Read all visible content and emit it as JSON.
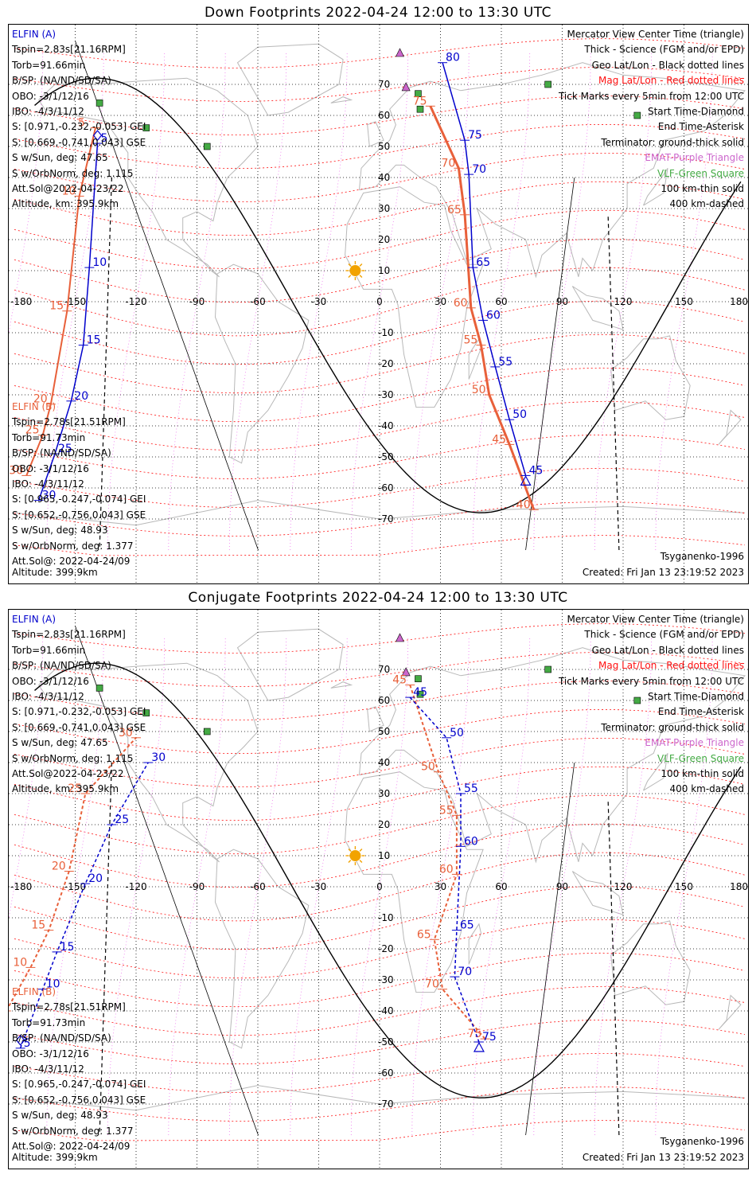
{
  "panels": [
    {
      "title": "Down Footprints 2022-04-24 12:00 to 13:30 UTC",
      "elfin_a": {
        "label": "ELFIN (A)",
        "lines": [
          "Tspin=2.83s[21.16RPM]",
          "Torb=91.66min",
          "B/SP: (NA/ND/SD/SA)",
          "OBO: -3/1/12/16",
          "IBO: -4/3/11/12",
          "S: [0.971,-0.232,-0.053] GEI",
          "S: [0.669,-0.741,0.043] GSE",
          "S w/Sun, deg: 47.65",
          "S w/OrbNorm, deg: 1.115",
          "Att.Sol@2022-04-23/22",
          "Altitude, km: 395.9km"
        ]
      },
      "elfin_b": {
        "label": "ELFIN (B)",
        "lines": [
          "Tspin=2.78s[21.51RPM]",
          "Torb=91.73min",
          "B/SP: (NA/ND/SD/SA)",
          "OBO: -3/1/12/16",
          "IBO: -4/3/11/12",
          "S: [0.965,-0.247,-0.074] GEI",
          "S: [0.652,-0.756,0.043] GSE",
          "S w/Sun, deg: 48.93",
          "S w/OrbNorm, deg: 1.377",
          "Att.Sol@: 2022-04-24/09",
          "Altitude: 399.9km"
        ]
      },
      "tracks": {
        "a_west": {
          "labels": [
            "5",
            "10",
            "15",
            "20",
            "25",
            "30"
          ],
          "lat": [
            51,
            11,
            -14,
            -32,
            -49,
            -64
          ],
          "lon": [
            -139,
            -143,
            -146,
            -152,
            -160,
            -168
          ]
        },
        "b_west": {
          "labels": [
            "5",
            "10",
            "15",
            "20",
            "25",
            "30"
          ],
          "lat": [
            56,
            34,
            -3,
            -33,
            -43,
            -56
          ],
          "lon": [
            -140,
            -148,
            -154,
            -162,
            -166,
            -174
          ]
        },
        "a_east": {
          "labels": [
            "80",
            "75",
            "70",
            "65",
            "60",
            "55",
            "50",
            "45"
          ],
          "lat": [
            77,
            52,
            41,
            11,
            -6,
            -21,
            -38,
            -56
          ],
          "lon": [
            31,
            42,
            44,
            46,
            51,
            57,
            64,
            72
          ]
        },
        "b_east": {
          "labels": [
            "75",
            "70",
            "65",
            "60",
            "55",
            "50",
            "45",
            "40"
          ],
          "lat": [
            63,
            43,
            28,
            -2,
            -14,
            -30,
            -46,
            -67
          ],
          "lon": [
            25,
            39,
            42,
            45,
            50,
            54,
            64,
            76
          ]
        }
      }
    },
    {
      "title": "Conjugate Footprints 2022-04-24 12:00 to 13:30 UTC",
      "elfin_a": {
        "label": "ELFIN (A)",
        "lines": [
          "Tspin=2.83s[21.16RPM]",
          "Torb=91.66min",
          "B/SP: (NA/ND/SD/SA)",
          "OBO: -3/1/12/16",
          "IBO: -4/3/11/12",
          "S: [0.971,-0.232,-0.053] GEI",
          "S: [0.669,-0.741,0.043] GSE",
          "S w/Sun, deg: 47.65",
          "S w/OrbNorm, deg: 1.115",
          "Att.Sol@2022-04-23/22",
          "Altitude, km: 395.9km"
        ]
      },
      "elfin_b": {
        "label": "ELFIN (B)",
        "lines": [
          "Tspin=2.78s[21.51RPM]",
          "Torb=91.73min",
          "B/SP: (NA/ND/SD/SA)",
          "OBO: -3/1/12/16",
          "IBO: -4/3/11/12",
          "S: [0.965,-0.247,-0.074] GEI",
          "S: [0.652,-0.756,0.043] GSE",
          "S w/Sun, deg: 48.93",
          "S w/OrbNorm, deg: 1.377",
          "Att.Sol@: 2022-04-24/09",
          "Altitude: 399.9km"
        ]
      },
      "tracks": {
        "a_west": {
          "labels": [
            "5",
            "10",
            "15",
            "20",
            "25",
            "30"
          ],
          "lat": [
            -52,
            -33,
            -21,
            1,
            20,
            40
          ],
          "lon": [
            -177,
            -166,
            -159,
            -145,
            -132,
            -114
          ]
        },
        "b_west": {
          "labels": [
            "5",
            "10",
            "15",
            "20",
            "25",
            "30"
          ],
          "lat": [
            -40,
            -26,
            -14,
            5,
            30,
            48
          ],
          "lon": [
            -184,
            -172,
            -163,
            -153,
            -145,
            -120
          ]
        },
        "a_east": {
          "labels": [
            "45",
            "50",
            "55",
            "60",
            "65",
            "70",
            "75"
          ],
          "lat": [
            61,
            48,
            30,
            13,
            -14,
            -29,
            -50
          ],
          "lon": [
            15,
            33,
            40,
            40,
            38,
            37,
            49
          ]
        },
        "b_east": {
          "labels": [
            "45",
            "50",
            "55",
            "60",
            "65",
            "70",
            "75"
          ],
          "lat": [
            65,
            37,
            23,
            4,
            -17,
            -33,
            -49
          ],
          "lon": [
            15,
            29,
            38,
            38,
            27,
            31,
            52
          ]
        }
      }
    }
  ],
  "legend": {
    "lines": [
      {
        "text": "Mercator View Center Time (triangle)",
        "color": "#000000"
      },
      {
        "text": "Thick - Science (FGM and/or EPD)",
        "color": "#000000"
      },
      {
        "text": "Geo Lat/Lon - Black dotted lines",
        "color": "#000000"
      },
      {
        "text": "Mag Lat/Lon - Red dotted lines",
        "color": "#ff1111"
      },
      {
        "text": "Tick Marks every 5min from 12:00 UTC",
        "color": "#000000"
      },
      {
        "text": "Start Time-Diamond",
        "color": "#000000"
      },
      {
        "text": "End Time-Asterisk",
        "color": "#000000"
      },
      {
        "text": "Terminator: ground-thick solid",
        "color": "#000000"
      },
      {
        "text": "EMAT-Purple Triangle",
        "color": "#cc66cc"
      },
      {
        "text": "VLF-Green Square",
        "color": "#44aa44"
      },
      {
        "text": "100 km-thin solid",
        "color": "#000000"
      },
      {
        "text": "400 km-dashed",
        "color": "#000000"
      }
    ]
  },
  "axes": {
    "lon_ticks": [
      "-180",
      "-150",
      "-120",
      "-90",
      "-60",
      "-30",
      "0",
      "30",
      "60",
      "90",
      "120",
      "150",
      "180"
    ],
    "lat_ticks": [
      "70",
      "60",
      "50",
      "40",
      "30",
      "20",
      "10",
      "0",
      "-10",
      "-20",
      "-30",
      "-40",
      "-50",
      "-60",
      "-70"
    ]
  },
  "model": "Tsyganenko-1996",
  "created": "Created: Fri Jan 13 23:19:52 2023",
  "colors": {
    "elfin_a": "#0000cc",
    "elfin_b": "#e8603a",
    "mag_grid": "#ff1111",
    "geo_grid": "#000000",
    "emat": "#cc66cc",
    "vlf": "#44aa44",
    "sun": "#f2a300"
  },
  "markers": {
    "emat": [
      {
        "lat": 80,
        "lon": 10
      },
      {
        "lat": 69,
        "lon": 13
      }
    ],
    "vlf": [
      {
        "lat": 64,
        "lon": -138
      },
      {
        "lat": 56,
        "lon": -115
      },
      {
        "lat": 50,
        "lon": -85
      },
      {
        "lat": 67,
        "lon": 19
      },
      {
        "lat": 62,
        "lon": 20
      },
      {
        "lat": 70,
        "lon": 83
      },
      {
        "lat": 60,
        "lon": 127
      }
    ],
    "sun": {
      "lat": 10,
      "lon": -12
    }
  }
}
